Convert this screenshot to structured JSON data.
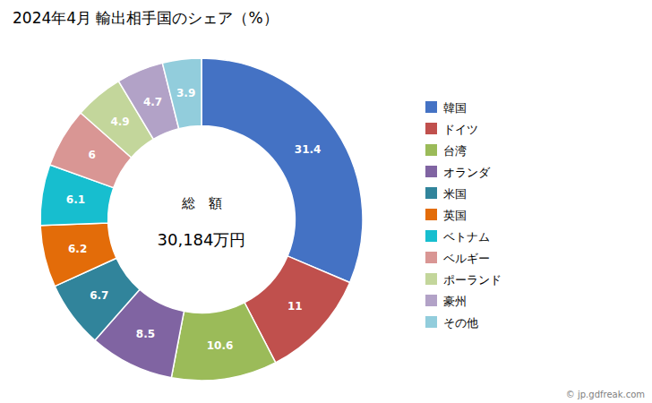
{
  "chart_data": {
    "type": "donut",
    "title": "2024年4月 輸出相手国のシェア（%）",
    "categories": [
      "韓国",
      "ドイツ",
      "台湾",
      "オランダ",
      "米国",
      "英国",
      "ベトナム",
      "ベルギー",
      "ポーランド",
      "豪州",
      "その他"
    ],
    "values": [
      31.4,
      11.0,
      10.6,
      8.5,
      6.7,
      6.2,
      6.1,
      6.0,
      4.9,
      4.7,
      3.9
    ],
    "colors": [
      "#4472C4",
      "#C0504D",
      "#9BBB59",
      "#8064A2",
      "#31849B",
      "#E36C09",
      "#17BECF",
      "#D99694",
      "#C3D69B",
      "#B2A2C7",
      "#92CDDC"
    ],
    "data_labels": true,
    "legend": "right",
    "annotations": [
      "総　額",
      "30,184万円",
      "© jp.gdfreak.com"
    ]
  }
}
